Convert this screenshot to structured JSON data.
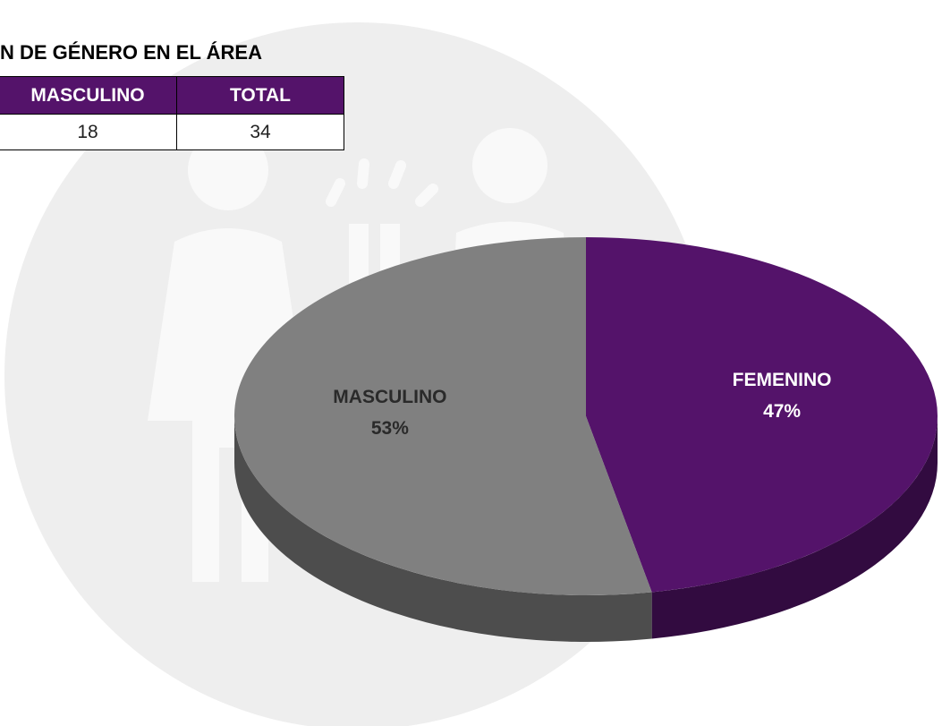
{
  "title": "N DE GÉNERO EN EL ÁREA",
  "table": {
    "header": [
      "MASCULINO",
      "TOTAL"
    ],
    "rows": [
      [
        18,
        34
      ]
    ]
  },
  "chart_data": {
    "type": "pie",
    "categories": [
      "FEMENINO",
      "MASCULINO"
    ],
    "values": [
      47,
      53
    ],
    "value_labels": [
      "47%",
      "53%"
    ],
    "colors": [
      "#54136a",
      "#808080"
    ]
  }
}
